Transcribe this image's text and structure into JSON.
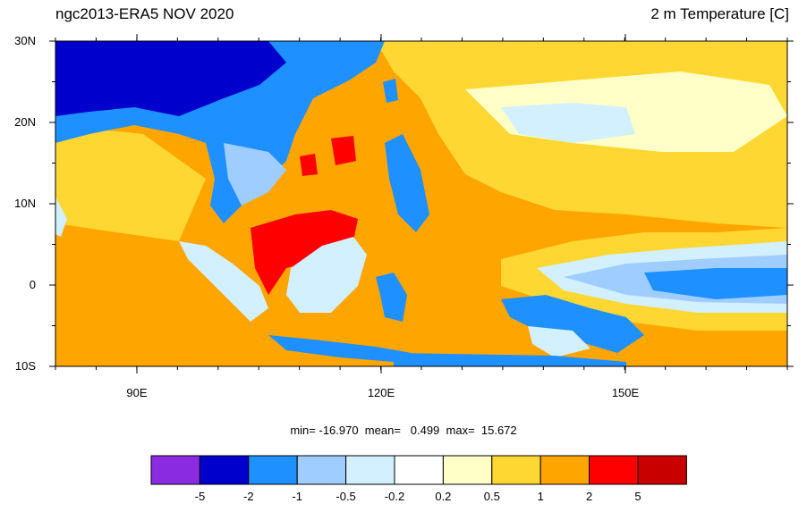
{
  "plot": {
    "title_left": "ngc2013-ERA5 NOV 2020",
    "title_right": "2 m Temperature [C]",
    "stats": "min= -16.970  mean=   0.499  max=  15.672"
  },
  "axes": {
    "lat_ticks": [
      "30N",
      "20N",
      "10N",
      "0",
      "10S"
    ],
    "lon_ticks": [
      "90E",
      "120E",
      "150E"
    ]
  },
  "colorbar": {
    "colors": [
      "#8a2be2",
      "#0000cd",
      "#1e90ff",
      "#a0cdff",
      "#d2f0ff",
      "#ffffff",
      "#ffffc8",
      "#ffd732",
      "#ffa500",
      "#ff0000",
      "#c80000"
    ],
    "labels": [
      "-5",
      "-2",
      "-1",
      "-0.5",
      "-0.2",
      "0.2",
      "0.5",
      "1",
      "2",
      "5"
    ]
  },
  "chart_data": {
    "type": "heatmap",
    "title": "ngc2013-ERA5 NOV 2020",
    "subtitle": "2 m Temperature [C]",
    "lat_range": [
      -10,
      30
    ],
    "lon_range": [
      80,
      170
    ],
    "min": -16.97,
    "mean": 0.499,
    "max": 15.672,
    "levels": [
      -5,
      -2,
      -1,
      -0.5,
      -0.2,
      0.2,
      0.5,
      1,
      2,
      5
    ]
  }
}
